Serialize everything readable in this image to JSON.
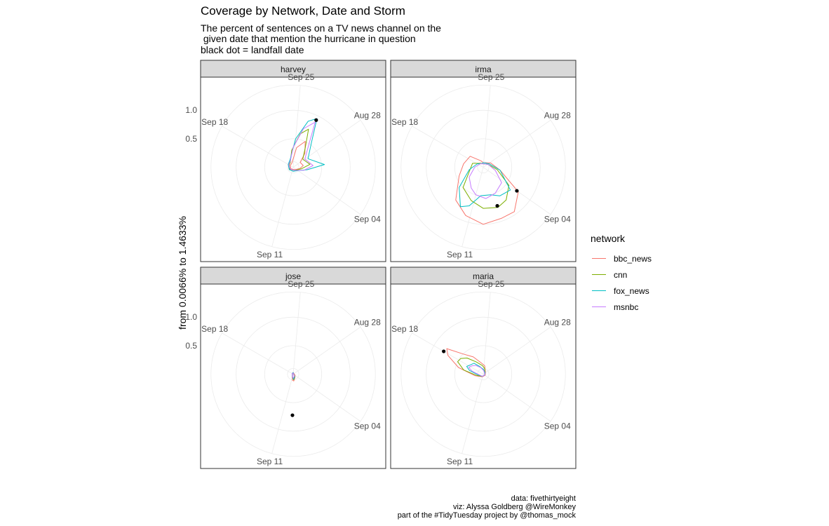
{
  "title": "Coverage by Network, Date and Storm",
  "subtitle_lines": [
    "The percent of sentences on a TV news channel on the",
    " given date that mention the hurricane in question",
    "black dot = landfall date"
  ],
  "ylabel": "from 0.0066% to 1.4633%",
  "captions": [
    "data: fivethirtyeight",
    "viz: Alyssa Goldberg @WireMonkey",
    "part of the #TidyTuesday project by @thomas_mock"
  ],
  "legend": {
    "title": "network",
    "items": [
      {
        "label": "bbc_news",
        "color": "#F8766D"
      },
      {
        "label": "cnn",
        "color": "#7CAE00"
      },
      {
        "label": "fox_news",
        "color": "#00BFC4"
      },
      {
        "label": "msnbc",
        "color": "#C77CFF"
      }
    ]
  },
  "chart_data": {
    "type": "line",
    "coord": "polar",
    "facets": [
      "harvey",
      "irma",
      "jose",
      "maria"
    ],
    "angular_tick_labels": [
      "Sep 25",
      "Aug 28",
      "Sep 04",
      "Sep 11",
      "Sep 18"
    ],
    "angular_tick_bearings_deg": [
      5,
      55,
      125,
      195,
      300
    ],
    "radial_ticks": [
      "0.5",
      "1.0"
    ],
    "radial_tick_values": [
      0.5,
      1.0
    ],
    "radial_max": 1.4633,
    "grid": true,
    "legend_position": "right",
    "series": [
      {
        "facet": "harvey",
        "name": "bbc_news",
        "points": [
          [
            -50,
            0.06
          ],
          [
            -15,
            0.08
          ],
          [
            10,
            0.35
          ],
          [
            25,
            0.5
          ],
          [
            40,
            0.32
          ],
          [
            55,
            0.15
          ],
          [
            80,
            0.18
          ],
          [
            100,
            0.12
          ],
          [
            130,
            0.06
          ],
          [
            175,
            0.04
          ],
          [
            240,
            0.05
          ],
          [
            300,
            0.06
          ]
        ]
      },
      {
        "facet": "harvey",
        "name": "cnn",
        "points": [
          [
            -30,
            0.1
          ],
          [
            -5,
            0.3
          ],
          [
            12,
            0.6
          ],
          [
            22,
            0.72
          ],
          [
            32,
            0.4
          ],
          [
            50,
            0.22
          ],
          [
            80,
            0.3
          ],
          [
            100,
            0.15
          ],
          [
            135,
            0.07
          ],
          [
            180,
            0.05
          ],
          [
            240,
            0.07
          ],
          [
            300,
            0.08
          ]
        ]
      },
      {
        "facet": "harvey",
        "name": "fox_news",
        "points": [
          [
            -20,
            0.15
          ],
          [
            5,
            0.5
          ],
          [
            18,
            0.85
          ],
          [
            26,
            0.95
          ],
          [
            36,
            0.55
          ],
          [
            60,
            0.3
          ],
          [
            85,
            0.55
          ],
          [
            100,
            0.25
          ],
          [
            140,
            0.08
          ],
          [
            180,
            0.07
          ],
          [
            240,
            0.08
          ],
          [
            300,
            0.1
          ]
        ]
      },
      {
        "facet": "harvey",
        "name": "msnbc",
        "points": [
          [
            -25,
            0.12
          ],
          [
            0,
            0.35
          ],
          [
            15,
            0.7
          ],
          [
            26,
            0.88
          ],
          [
            34,
            0.5
          ],
          [
            55,
            0.25
          ],
          [
            85,
            0.35
          ],
          [
            105,
            0.2
          ],
          [
            140,
            0.07
          ],
          [
            180,
            0.05
          ],
          [
            240,
            0.06
          ],
          [
            300,
            0.09
          ]
        ]
      },
      {
        "facet": "irma",
        "name": "bbc_news",
        "points": [
          [
            0,
            0.08
          ],
          [
            60,
            0.15
          ],
          [
            100,
            0.3
          ],
          [
            125,
            0.75
          ],
          [
            145,
            0.95
          ],
          [
            160,
            0.95
          ],
          [
            180,
            1.0
          ],
          [
            200,
            0.9
          ],
          [
            220,
            0.75
          ],
          [
            250,
            0.45
          ],
          [
            280,
            0.35
          ],
          [
            310,
            0.3
          ],
          [
            340,
            0.12
          ]
        ]
      },
      {
        "facet": "irma",
        "name": "cnn",
        "points": [
          [
            0,
            0.06
          ],
          [
            60,
            0.1
          ],
          [
            100,
            0.25
          ],
          [
            125,
            0.55
          ],
          [
            145,
            0.7
          ],
          [
            160,
            0.75
          ],
          [
            180,
            0.72
          ],
          [
            200,
            0.62
          ],
          [
            225,
            0.5
          ],
          [
            255,
            0.25
          ],
          [
            290,
            0.2
          ],
          [
            330,
            0.08
          ]
        ]
      },
      {
        "facet": "irma",
        "name": "fox_news",
        "points": [
          [
            0,
            0.08
          ],
          [
            60,
            0.12
          ],
          [
            100,
            0.3
          ],
          [
            130,
            0.62
          ],
          [
            150,
            0.58
          ],
          [
            165,
            0.5
          ],
          [
            185,
            0.5
          ],
          [
            200,
            0.72
          ],
          [
            210,
            0.8
          ],
          [
            230,
            0.55
          ],
          [
            260,
            0.25
          ],
          [
            300,
            0.12
          ],
          [
            340,
            0.07
          ]
        ]
      },
      {
        "facet": "irma",
        "name": "msnbc",
        "points": [
          [
            0,
            0.06
          ],
          [
            60,
            0.1
          ],
          [
            105,
            0.22
          ],
          [
            130,
            0.42
          ],
          [
            155,
            0.5
          ],
          [
            175,
            0.55
          ],
          [
            195,
            0.5
          ],
          [
            210,
            0.42
          ],
          [
            235,
            0.3
          ],
          [
            270,
            0.15
          ],
          [
            320,
            0.08
          ]
        ]
      },
      {
        "facet": "jose",
        "name": "bbc_news",
        "points": [
          [
            0,
            0.03
          ],
          [
            120,
            0.04
          ],
          [
            160,
            0.08
          ],
          [
            175,
            0.12
          ],
          [
            185,
            0.11
          ],
          [
            200,
            0.05
          ],
          [
            300,
            0.02
          ]
        ]
      },
      {
        "facet": "jose",
        "name": "cnn",
        "points": [
          [
            0,
            0.02
          ],
          [
            150,
            0.06
          ],
          [
            175,
            0.1
          ],
          [
            190,
            0.06
          ],
          [
            300,
            0.02
          ]
        ]
      },
      {
        "facet": "jose",
        "name": "fox_news",
        "points": [
          [
            0,
            0.03
          ],
          [
            150,
            0.05
          ],
          [
            175,
            0.09
          ],
          [
            195,
            0.05
          ],
          [
            300,
            0.02
          ]
        ]
      },
      {
        "facet": "jose",
        "name": "msnbc",
        "points": [
          [
            0,
            0.02
          ],
          [
            150,
            0.04
          ],
          [
            178,
            0.07
          ],
          [
            200,
            0.04
          ],
          [
            300,
            0.02
          ]
        ]
      },
      {
        "facet": "maria",
        "name": "bbc_news",
        "points": [
          [
            50,
            0.05
          ],
          [
            120,
            0.04
          ],
          [
            200,
            0.05
          ],
          [
            260,
            0.15
          ],
          [
            285,
            0.45
          ],
          [
            298,
            0.7
          ],
          [
            305,
            0.78
          ],
          [
            315,
            0.5
          ],
          [
            330,
            0.35
          ],
          [
            350,
            0.2
          ],
          [
            10,
            0.15
          ]
        ]
      },
      {
        "facet": "maria",
        "name": "cnn",
        "points": [
          [
            50,
            0.04
          ],
          [
            120,
            0.03
          ],
          [
            200,
            0.04
          ],
          [
            260,
            0.12
          ],
          [
            282,
            0.35
          ],
          [
            296,
            0.5
          ],
          [
            305,
            0.48
          ],
          [
            315,
            0.4
          ],
          [
            330,
            0.25
          ],
          [
            355,
            0.15
          ],
          [
            15,
            0.1
          ]
        ]
      },
      {
        "facet": "maria",
        "name": "fox_news",
        "points": [
          [
            50,
            0.04
          ],
          [
            120,
            0.03
          ],
          [
            200,
            0.04
          ],
          [
            265,
            0.1
          ],
          [
            285,
            0.25
          ],
          [
            295,
            0.32
          ],
          [
            305,
            0.28
          ],
          [
            320,
            0.25
          ],
          [
            335,
            0.15
          ],
          [
            5,
            0.08
          ]
        ]
      },
      {
        "facet": "maria",
        "name": "msnbc",
        "points": [
          [
            50,
            0.03
          ],
          [
            120,
            0.03
          ],
          [
            200,
            0.04
          ],
          [
            265,
            0.08
          ],
          [
            285,
            0.2
          ],
          [
            295,
            0.28
          ],
          [
            305,
            0.25
          ],
          [
            320,
            0.2
          ],
          [
            340,
            0.12
          ],
          [
            10,
            0.06
          ]
        ]
      }
    ],
    "landfall_points": [
      {
        "facet": "harvey",
        "angle": 26,
        "value": 0.92
      },
      {
        "facet": "irma",
        "angle": 125,
        "value": 0.72
      },
      {
        "facet": "irma",
        "angle": 160,
        "value": 0.72
      },
      {
        "facet": "jose",
        "angle": 181,
        "value": 0.72
      },
      {
        "facet": "maria",
        "angle": 300,
        "value": 0.8
      }
    ]
  }
}
